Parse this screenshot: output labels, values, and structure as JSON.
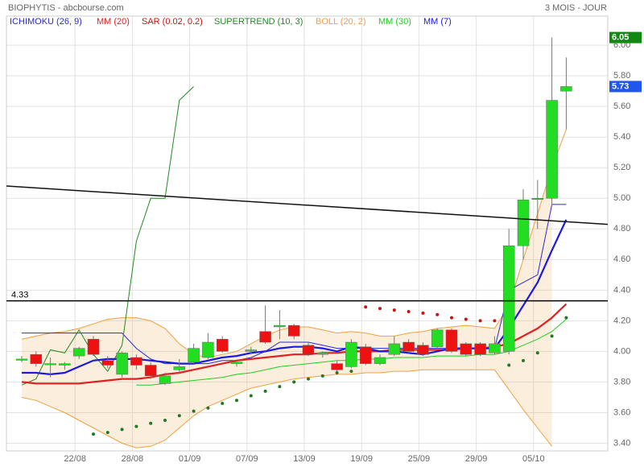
{
  "chart_data": {
    "type": "candlestick",
    "title": "BIOPHYTIS - abcbourse.com",
    "period": "3 MOIS - JOUR",
    "categories": [
      null,
      null,
      null,
      null,
      "22/08",
      null,
      null,
      null,
      "28/08",
      null,
      null,
      null,
      "01/09",
      null,
      null,
      null,
      "07/09",
      null,
      null,
      null,
      "13/09",
      null,
      null,
      null,
      "19/09",
      null,
      null,
      null,
      "25/09",
      null,
      null,
      null,
      "29/09",
      null,
      null,
      null,
      "05/10",
      null,
      null
    ],
    "open": [
      3.95,
      3.98,
      3.92,
      3.91,
      3.97,
      4.08,
      3.94,
      3.85,
      3.96,
      3.91,
      3.79,
      3.88,
      3.93,
      3.96,
      4.08,
      3.92,
      4.0,
      4.13,
      4.16,
      4.17,
      4.04,
      3.98,
      3.92,
      3.9,
      4.03,
      3.92,
      3.98,
      4.06,
      4.04,
      4.03,
      4.14,
      4.05,
      4.05,
      3.99,
      4.0,
      4.69,
      5.0,
      5.0,
      5.7
    ],
    "high": [
      3.97,
      4.0,
      3.96,
      3.93,
      4.03,
      4.1,
      3.97,
      4.0,
      3.98,
      3.93,
      3.86,
      3.95,
      4.05,
      4.12,
      4.1,
      3.94,
      4.03,
      4.3,
      4.27,
      4.18,
      4.06,
      4.0,
      3.94,
      4.08,
      4.05,
      3.98,
      4.1,
      4.08,
      4.06,
      4.15,
      4.15,
      4.06,
      4.06,
      4.1,
      4.8,
      5.06,
      5.12,
      6.05,
      5.92
    ],
    "low": [
      3.93,
      3.9,
      3.83,
      3.88,
      3.95,
      3.97,
      3.89,
      3.83,
      3.88,
      3.82,
      3.78,
      3.86,
      3.92,
      3.95,
      3.99,
      3.9,
      3.98,
      4.05,
      4.08,
      4.08,
      3.97,
      3.96,
      3.87,
      3.89,
      3.91,
      3.91,
      3.97,
      3.99,
      3.97,
      4.02,
      3.99,
      3.97,
      3.97,
      3.98,
      3.98,
      4.6,
      4.8,
      4.95,
      5.45
    ],
    "close": [
      3.95,
      3.92,
      3.92,
      3.92,
      4.02,
      3.98,
      3.91,
      3.99,
      3.91,
      3.84,
      3.84,
      3.9,
      4.02,
      4.06,
      4.0,
      3.93,
      4.01,
      4.06,
      4.17,
      4.1,
      3.98,
      3.99,
      3.88,
      4.06,
      3.92,
      3.96,
      4.05,
      4.0,
      3.98,
      4.14,
      4.0,
      3.98,
      3.98,
      4.05,
      4.69,
      4.99,
      5.0,
      5.64,
      5.73
    ],
    "up_color": "#22dd22",
    "down_color": "#ee1111",
    "indicators": [
      {
        "name": "ICHIMOKU (26, 9)",
        "color": "#2a2ad0",
        "style": "line",
        "values": [
          4.12,
          4.12,
          4.12,
          4.12,
          4.12,
          4.12,
          4.12,
          4.12,
          4.02,
          3.95,
          3.92,
          3.92,
          3.92,
          3.92,
          3.94,
          3.94,
          3.96,
          4.0,
          4.06,
          4.06,
          4.06,
          4.04,
          4.02,
          4.02,
          4.02,
          4.02,
          4.02,
          4.02,
          4.02,
          4.02,
          4.02,
          4.02,
          4.02,
          4.02,
          4.4,
          4.45,
          4.5,
          4.96,
          4.96
        ]
      },
      {
        "name": "MM (20)",
        "color": "#dd2222",
        "style": "thick",
        "values": [
          3.8,
          3.79,
          3.79,
          3.79,
          3.79,
          3.8,
          3.81,
          3.82,
          3.82,
          3.83,
          3.85,
          3.86,
          3.88,
          3.9,
          3.92,
          3.94,
          3.95,
          3.96,
          3.97,
          3.98,
          3.98,
          3.99,
          3.99,
          4.0,
          4.0,
          4.0,
          4.01,
          4.01,
          4.01,
          4.01,
          4.01,
          4.02,
          4.02,
          4.03,
          4.05,
          4.1,
          4.15,
          4.22,
          4.31
        ]
      },
      {
        "name": "SAR (0.02, 0.2)",
        "color": "#cc1111",
        "up_color": "#227722",
        "style": "dots",
        "values": [
          null,
          null,
          null,
          null,
          null,
          3.46,
          3.47,
          3.49,
          3.51,
          3.53,
          3.55,
          3.58,
          3.61,
          3.63,
          3.66,
          3.68,
          3.71,
          3.74,
          3.77,
          3.8,
          3.82,
          3.84,
          3.86,
          3.87,
          4.29,
          4.28,
          4.27,
          4.26,
          4.25,
          4.24,
          4.22,
          4.21,
          4.2,
          4.2,
          3.91,
          3.94,
          3.99,
          4.1,
          4.22
        ]
      },
      {
        "name": "SUPERTREND (10, 3)",
        "color": "#228822",
        "style": "line",
        "values": [
          3.78,
          3.82,
          4.01,
          3.99,
          4.14,
          3.98,
          3.87,
          4.04,
          4.72,
          5.0,
          5.0,
          5.64,
          5.73,
          null,
          null,
          null,
          null,
          null,
          null,
          null,
          null,
          null,
          null,
          null,
          null,
          null,
          null,
          null,
          null,
          null,
          null,
          null,
          null,
          null,
          null,
          null,
          null,
          null,
          null
        ]
      },
      {
        "name": "BOLL (20, 2)",
        "color": "#f0a040",
        "style": "band",
        "upper": [
          4.08,
          4.1,
          4.12,
          4.13,
          4.15,
          4.18,
          4.21,
          4.22,
          4.22,
          4.2,
          4.15,
          4.05,
          3.98,
          3.96,
          3.98,
          4.0,
          4.05,
          4.1,
          4.14,
          4.16,
          4.16,
          4.14,
          4.12,
          4.13,
          4.12,
          4.1,
          4.1,
          4.12,
          4.13,
          4.15,
          4.16,
          4.17,
          4.16,
          4.15,
          4.3,
          4.6,
          4.9,
          5.2,
          5.45
        ],
        "lower": [
          3.7,
          3.68,
          3.64,
          3.6,
          3.55,
          3.5,
          3.45,
          3.4,
          3.37,
          3.38,
          3.42,
          3.5,
          3.58,
          3.64,
          3.68,
          3.72,
          3.76,
          3.78,
          3.8,
          3.82,
          3.83,
          3.84,
          3.85,
          3.85,
          3.86,
          3.86,
          3.87,
          3.87,
          3.88,
          3.88,
          3.88,
          3.88,
          3.88,
          3.88,
          3.75,
          3.62,
          3.5,
          3.38,
          null
        ]
      },
      {
        "name": "MM (30)",
        "color": "#22cc22",
        "style": "line",
        "values": [
          null,
          null,
          null,
          null,
          null,
          null,
          null,
          null,
          3.78,
          3.78,
          3.79,
          3.8,
          3.81,
          3.82,
          3.83,
          3.85,
          3.86,
          3.88,
          3.9,
          3.91,
          3.92,
          3.93,
          3.94,
          3.94,
          3.95,
          3.95,
          3.96,
          3.96,
          3.96,
          3.97,
          3.97,
          3.97,
          3.98,
          3.98,
          4.0,
          4.04,
          4.08,
          4.13,
          4.21
        ]
      },
      {
        "name": "MM (7)",
        "color": "#1a1ae0",
        "style": "thick",
        "values": [
          3.86,
          3.86,
          3.85,
          3.86,
          3.9,
          3.94,
          3.95,
          3.95,
          3.95,
          3.94,
          3.93,
          3.92,
          3.92,
          3.94,
          3.96,
          3.97,
          3.99,
          4.0,
          4.02,
          4.03,
          4.03,
          4.02,
          4.0,
          4.03,
          4.02,
          4.0,
          4.0,
          3.99,
          3.98,
          4.0,
          4.02,
          4.02,
          4.02,
          4.02,
          4.15,
          4.3,
          4.45,
          4.66,
          4.86
        ]
      }
    ],
    "trendline": [
      5.08,
      4.83
    ],
    "level": 4.33,
    "price_tags": [
      {
        "value": 6.05,
        "color": "#118811"
      },
      {
        "value": 5.73,
        "color": "#2255ee"
      }
    ],
    "ylim": [
      3.35,
      6.19
    ],
    "yticks": [
      {
        "value": 3.4,
        "label": "3.40"
      },
      {
        "value": 3.6,
        "label": "3.60"
      },
      {
        "value": 3.8,
        "label": "3.80"
      },
      {
        "value": 4,
        "label": "4.00"
      },
      {
        "value": 4.2,
        "label": "4.20"
      },
      {
        "value": 4.4,
        "label": "4.40"
      },
      {
        "value": 4.6,
        "label": "4.60"
      },
      {
        "value": 4.8,
        "label": "4.80"
      },
      {
        "value": 5,
        "label": "5.00"
      },
      {
        "value": 5.2,
        "label": "5.20"
      },
      {
        "value": 5.4,
        "label": "5.40"
      },
      {
        "value": 5.6,
        "label": "5.60"
      },
      {
        "value": 5.8,
        "label": "5.80"
      },
      {
        "value": 6,
        "label": "6.00"
      }
    ],
    "grid": true
  }
}
